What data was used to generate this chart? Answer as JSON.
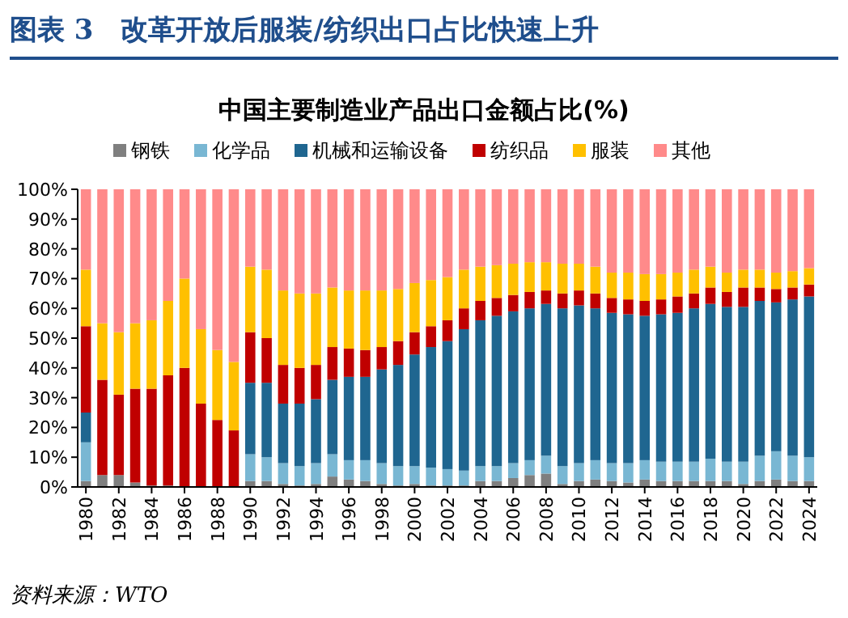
{
  "chart_data": {
    "type": "bar",
    "stacked": true,
    "title": "图表 3　改革开放后服装/纺织出口占比快速上升",
    "subtitle": "中国主要制造业产品出口金额占比(%)",
    "categories": [
      "1980",
      null,
      "1982",
      null,
      "1984",
      null,
      "1986",
      null,
      "1988",
      null,
      "1990",
      null,
      "1992",
      null,
      "1994",
      null,
      "1996",
      null,
      "1998",
      null,
      "2000",
      null,
      "2002",
      null,
      "2004",
      null,
      "2006",
      null,
      "2008",
      null,
      "2010",
      null,
      "2012",
      null,
      "2014",
      null,
      "2016",
      null,
      "2018",
      null,
      "2020",
      null,
      "2022",
      null,
      "2024"
    ],
    "series": [
      {
        "name": "钢铁",
        "color": "#7f7f7f",
        "values": [
          2,
          4,
          4,
          1.5,
          0.5,
          0.5,
          0,
          0,
          0,
          0,
          2,
          2,
          1,
          0.5,
          1,
          3.5,
          2.5,
          2,
          1,
          0.5,
          1,
          0.5,
          0.5,
          0.5,
          2,
          2,
          3,
          4,
          4.5,
          1,
          2,
          2.5,
          2,
          1.5,
          2.5,
          2,
          2,
          2,
          2,
          2,
          1,
          2,
          2.5,
          2,
          2
        ]
      },
      {
        "name": "化学品",
        "color": "#79b7d3",
        "values": [
          13,
          0,
          0,
          0,
          0,
          0,
          0,
          0,
          0,
          0,
          9,
          8,
          7,
          6.5,
          7,
          7.5,
          6.5,
          7,
          7,
          6.5,
          6,
          6,
          5.5,
          5,
          5,
          5,
          5,
          5,
          6,
          6,
          6,
          6.5,
          6,
          6.5,
          6.5,
          6.5,
          6.5,
          6.5,
          7.5,
          6.5,
          7.5,
          8.5,
          9.5,
          8.5,
          8
        ]
      },
      {
        "name": "机械和运输设备",
        "color": "#1f6690",
        "values": [
          10,
          0,
          0,
          0,
          0,
          0,
          0,
          0,
          0,
          0,
          24,
          25,
          20,
          21,
          21.5,
          25,
          28,
          28,
          31.5,
          34,
          37.5,
          40.5,
          43,
          47.5,
          49,
          50.5,
          51,
          51,
          51,
          53,
          53,
          51,
          50.5,
          50,
          48.5,
          49.5,
          50,
          51.5,
          52,
          52,
          52,
          52,
          50,
          52.5,
          54
        ]
      },
      {
        "name": "纺织品",
        "color": "#c00000",
        "values": [
          29,
          32,
          27,
          31.5,
          32.5,
          37,
          40,
          28,
          22.5,
          19,
          17,
          15,
          13,
          12,
          11.5,
          11,
          9.5,
          9,
          7.5,
          8,
          7.5,
          7,
          7,
          7,
          6.5,
          6,
          5.5,
          5.5,
          4.5,
          5,
          5,
          5,
          5,
          5,
          5,
          5,
          5.5,
          5,
          5.5,
          5,
          6.5,
          4.5,
          4.5,
          4,
          4
        ]
      },
      {
        "name": "服装",
        "color": "#ffc000",
        "values": [
          19,
          19,
          21,
          22,
          23,
          25,
          30,
          25,
          23.5,
          23,
          22,
          23,
          25,
          25,
          24,
          20,
          19.5,
          20,
          19,
          17.5,
          16.5,
          15.5,
          14.5,
          13,
          11.5,
          11,
          10.5,
          10,
          9.5,
          10,
          9,
          9,
          8.5,
          9,
          9,
          8.5,
          8,
          8,
          7,
          6.5,
          6,
          6,
          5.5,
          5.5,
          5.5
        ]
      },
      {
        "name": "其他",
        "color": "#ff8a8a",
        "values": [
          27,
          45,
          48,
          45,
          44,
          37.5,
          30,
          47,
          54,
          58,
          26,
          27,
          34,
          35,
          35,
          33,
          34,
          34,
          34,
          33.5,
          31.5,
          30.5,
          29.5,
          27,
          26,
          25.5,
          25,
          24.5,
          24.5,
          25,
          25,
          26,
          28,
          28,
          28.5,
          28.5,
          28,
          27,
          26,
          28,
          27,
          27,
          28,
          27.5,
          26.5
        ]
      }
    ],
    "ylim": [
      0,
      100
    ],
    "yticks": [
      {
        "value": 0,
        "label": "0%"
      },
      {
        "value": 10,
        "label": "10%"
      },
      {
        "value": 20,
        "label": "20%"
      },
      {
        "value": 30,
        "label": "30%"
      },
      {
        "value": 40,
        "label": "40%"
      },
      {
        "value": 50,
        "label": "50%"
      },
      {
        "value": 60,
        "label": "60%"
      },
      {
        "value": 70,
        "label": "70%"
      },
      {
        "value": 80,
        "label": "80%"
      },
      {
        "value": 90,
        "label": "90%"
      },
      {
        "value": 100,
        "label": "100%"
      }
    ],
    "legend": "top",
    "grid": false,
    "annotations": [
      "资料来源：WTO"
    ]
  }
}
